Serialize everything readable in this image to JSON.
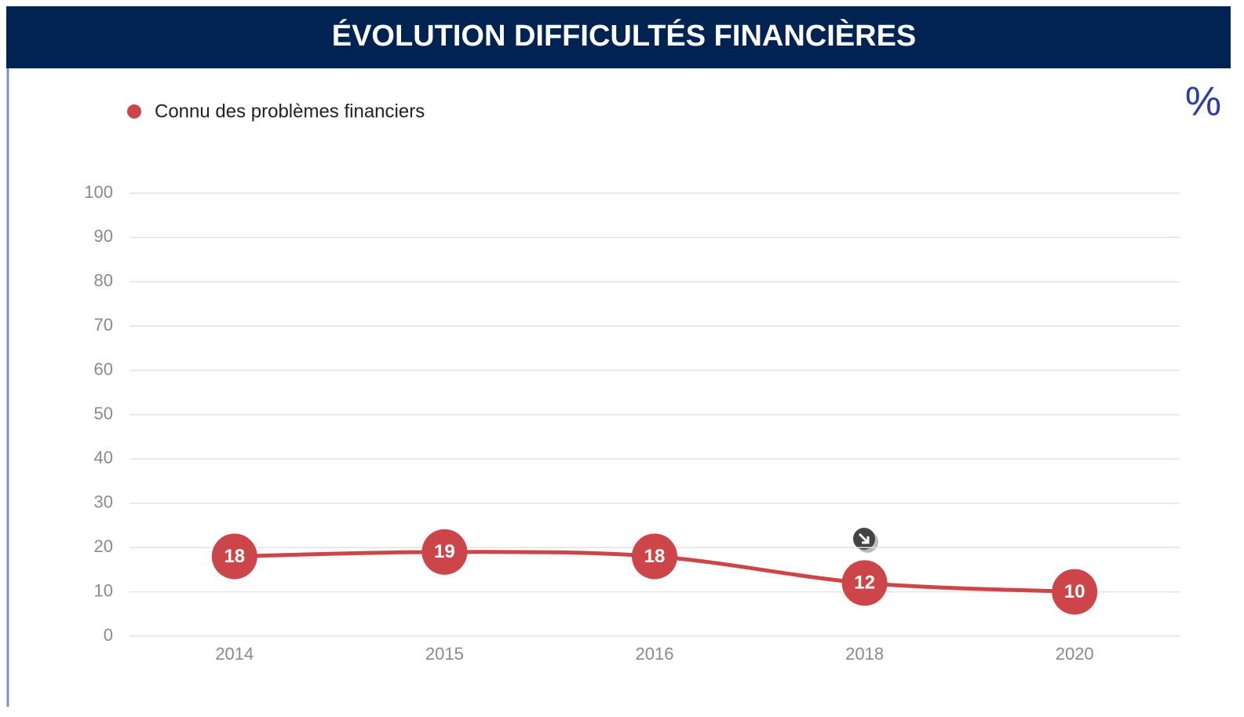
{
  "chart_data": {
    "type": "line",
    "title": "ÉVOLUTION DIFFICULTÉS FINANCIÈRES",
    "unit": "%",
    "categories": [
      "2014",
      "2015",
      "2016",
      "2018",
      "2020"
    ],
    "series": [
      {
        "name": "Connu des problèmes financiers",
        "color": "#cc4548",
        "values": [
          18,
          19,
          18,
          12,
          10
        ]
      }
    ],
    "ylim": [
      0,
      100
    ],
    "yticks": [
      0,
      10,
      20,
      30,
      40,
      50,
      60,
      70,
      80,
      90,
      100
    ],
    "grid": true,
    "legend": "top-left"
  }
}
